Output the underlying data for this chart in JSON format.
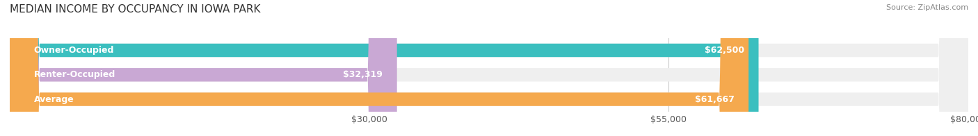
{
  "title": "MEDIAN INCOME BY OCCUPANCY IN IOWA PARK",
  "source": "Source: ZipAtlas.com",
  "categories": [
    "Owner-Occupied",
    "Renter-Occupied",
    "Average"
  ],
  "values": [
    62500,
    32319,
    61667
  ],
  "value_labels": [
    "$62,500",
    "$32,319",
    "$61,667"
  ],
  "bar_colors": [
    "#3bbfbf",
    "#c9a8d4",
    "#f5a94e"
  ],
  "row_bg_color": "#efefef",
  "xmax": 80000,
  "xticks": [
    30000,
    55000,
    80000
  ],
  "xtick_labels": [
    "$30,000",
    "$55,000",
    "$80,000"
  ],
  "title_fontsize": 11,
  "source_fontsize": 8,
  "label_fontsize": 9,
  "value_fontsize": 9,
  "tick_fontsize": 9,
  "bar_height": 0.55,
  "bg_color": "#ffffff"
}
